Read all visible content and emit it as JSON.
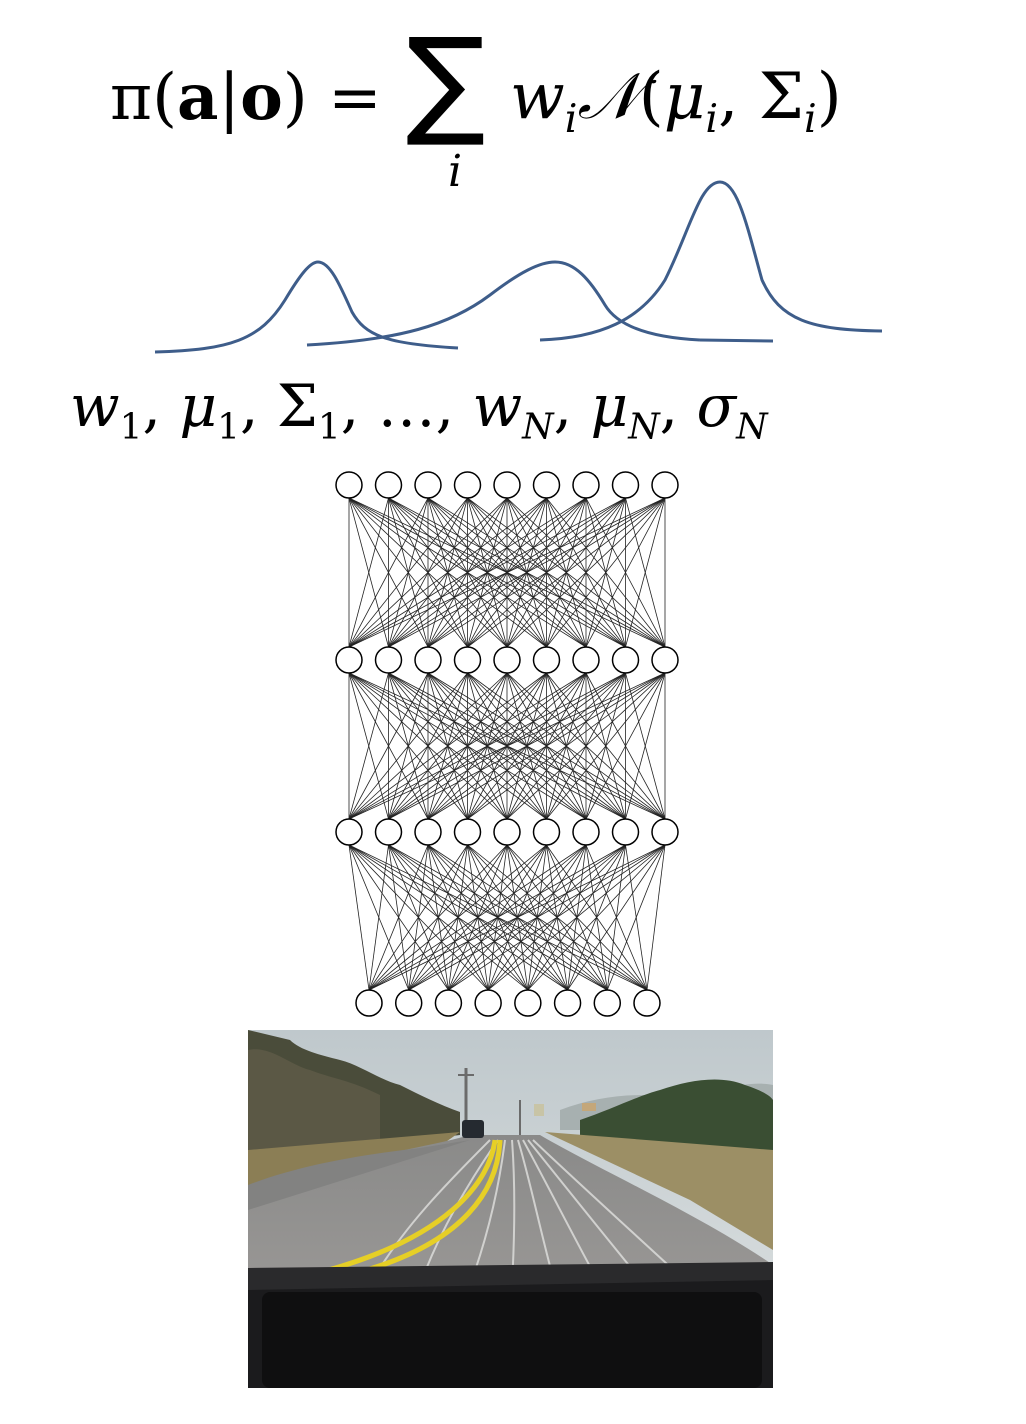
{
  "formula": {
    "lhs_pi": "π",
    "lhs_open": "(",
    "lhs_a": "a",
    "lhs_bar": "|",
    "lhs_o": "o",
    "lhs_close": ")",
    "equals": " = ",
    "sum_symbol": "∑",
    "sum_index": "i",
    "w": "w",
    "w_sub": "i",
    "normal": "𝒩",
    "open": "(",
    "mu": "μ",
    "mu_sub": "i",
    "comma": ", ",
    "Sigma": "Σ",
    "Sigma_sub": "i",
    "close": ")"
  },
  "params": {
    "w1": "w",
    "w1_sub": "1",
    "mu1": "μ",
    "mu1_sub": "1",
    "S1": "Σ",
    "S1_sub": "1",
    "dots": "…",
    "wN": "w",
    "wN_sub": "N",
    "muN": "μ",
    "muN_sub": "N",
    "sN": "σ",
    "sN_sub": "N",
    "sep": ", "
  },
  "colors": {
    "curve": "#3e5d8a",
    "node_stroke": "#000000",
    "edge": "#222222",
    "sky": "#c9d2d6",
    "road": "#8f8f8e",
    "yellow_line": "#e6cf26",
    "dashboard": "#1b1b1d"
  },
  "network": {
    "layers": [
      {
        "name": "output-layer",
        "nodes": 9
      },
      {
        "name": "hidden-layer-2",
        "nodes": 9
      },
      {
        "name": "hidden-layer-1",
        "nodes": 9
      },
      {
        "name": "input-layer",
        "nodes": 8
      }
    ]
  },
  "icons": {
    "gaussian-mixture": "three-gaussian-bumps",
    "road-photo": "driving-camera-view"
  }
}
